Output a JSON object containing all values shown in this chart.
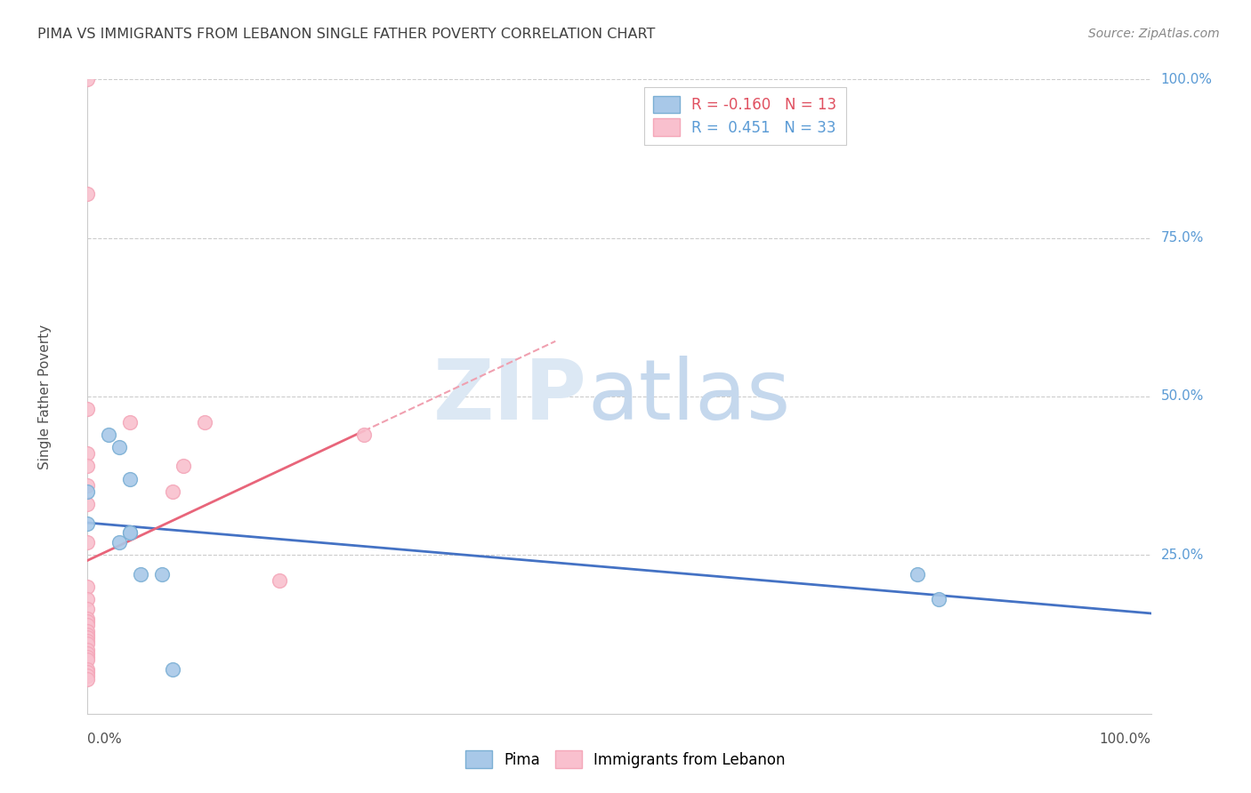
{
  "title": "PIMA VS IMMIGRANTS FROM LEBANON SINGLE FATHER POVERTY CORRELATION CHART",
  "source": "Source: ZipAtlas.com",
  "ylabel": "Single Father Poverty",
  "legend_r_values": [
    "-0.160",
    "0.451"
  ],
  "legend_n_values": [
    "13",
    "33"
  ],
  "pima_points": [
    [
      0.0,
      0.35
    ],
    [
      0.0,
      0.3
    ],
    [
      0.02,
      0.44
    ],
    [
      0.03,
      0.42
    ],
    [
      0.03,
      0.27
    ],
    [
      0.04,
      0.37
    ],
    [
      0.04,
      0.285
    ],
    [
      0.04,
      0.285
    ],
    [
      0.05,
      0.22
    ],
    [
      0.07,
      0.22
    ],
    [
      0.08,
      0.07
    ],
    [
      0.78,
      0.22
    ],
    [
      0.8,
      0.18
    ]
  ],
  "lebanon_points": [
    [
      0.0,
      1.0
    ],
    [
      0.0,
      0.82
    ],
    [
      0.0,
      0.48
    ],
    [
      0.0,
      0.41
    ],
    [
      0.0,
      0.39
    ],
    [
      0.0,
      0.36
    ],
    [
      0.0,
      0.33
    ],
    [
      0.0,
      0.27
    ],
    [
      0.0,
      0.2
    ],
    [
      0.0,
      0.18
    ],
    [
      0.0,
      0.165
    ],
    [
      0.0,
      0.15
    ],
    [
      0.0,
      0.145
    ],
    [
      0.0,
      0.14
    ],
    [
      0.0,
      0.13
    ],
    [
      0.0,
      0.125
    ],
    [
      0.0,
      0.12
    ],
    [
      0.0,
      0.115
    ],
    [
      0.0,
      0.11
    ],
    [
      0.0,
      0.1
    ],
    [
      0.0,
      0.095
    ],
    [
      0.0,
      0.09
    ],
    [
      0.0,
      0.085
    ],
    [
      0.0,
      0.07
    ],
    [
      0.0,
      0.065
    ],
    [
      0.0,
      0.06
    ],
    [
      0.0,
      0.055
    ],
    [
      0.04,
      0.46
    ],
    [
      0.08,
      0.35
    ],
    [
      0.09,
      0.39
    ],
    [
      0.11,
      0.46
    ],
    [
      0.18,
      0.21
    ],
    [
      0.26,
      0.44
    ]
  ],
  "pima_color": "#a8c8e8",
  "pima_edge_color": "#7bafd4",
  "lebanon_color": "#f9c0ce",
  "lebanon_edge_color": "#f4a7b9",
  "pima_line_color": "#4472c4",
  "lebanon_line_color": "#e8657a",
  "lebanon_dashed_color": "#f0a0b0",
  "background_color": "#ffffff",
  "grid_color": "#cccccc",
  "right_label_color": "#5b9bd5",
  "title_color": "#404040",
  "source_color": "#888888",
  "watermark_zip_color": "#dce8f4",
  "watermark_atlas_color": "#c5d8ed"
}
